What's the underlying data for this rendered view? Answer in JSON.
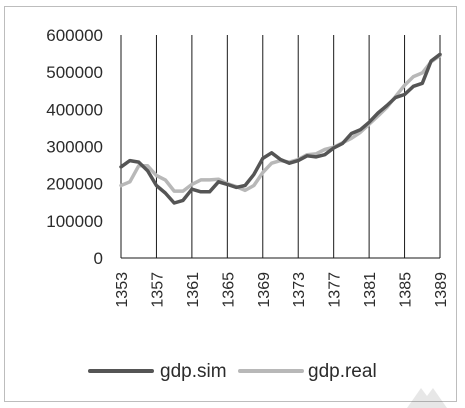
{
  "chart_data": {
    "type": "line",
    "title": "",
    "xlabel": "",
    "ylabel": "",
    "x": [
      1353,
      1354,
      1355,
      1356,
      1357,
      1358,
      1359,
      1360,
      1361,
      1362,
      1363,
      1364,
      1365,
      1366,
      1367,
      1368,
      1369,
      1370,
      1371,
      1372,
      1373,
      1374,
      1375,
      1376,
      1377,
      1378,
      1379,
      1380,
      1381,
      1382,
      1383,
      1384,
      1385,
      1386,
      1387,
      1388,
      1389
    ],
    "x_tick_labels": [
      "1353",
      "1357",
      "1361",
      "1365",
      "1369",
      "1373",
      "1377",
      "1381",
      "1385",
      "1389"
    ],
    "ylim": [
      0,
      600000
    ],
    "y_tick_labels": [
      "0",
      "100000",
      "200000",
      "300000",
      "400000",
      "500000",
      "600000"
    ],
    "grid": "vertical",
    "legend_position": "bottom",
    "series": [
      {
        "name": "gdp.sim",
        "color": "#555555",
        "values": [
          245000,
          262000,
          258000,
          235000,
          195000,
          175000,
          148000,
          155000,
          185000,
          178000,
          178000,
          205000,
          198000,
          190000,
          195000,
          225000,
          268000,
          283000,
          265000,
          255000,
          262000,
          275000,
          272000,
          278000,
          296000,
          308000,
          335000,
          345000,
          365000,
          390000,
          410000,
          432000,
          440000,
          462000,
          470000,
          530000,
          548000
        ]
      },
      {
        "name": "gdp.real",
        "color": "#b8b8b8",
        "values": [
          195000,
          205000,
          248000,
          248000,
          222000,
          210000,
          180000,
          180000,
          198000,
          210000,
          210000,
          212000,
          200000,
          192000,
          182000,
          195000,
          230000,
          255000,
          262000,
          258000,
          265000,
          278000,
          280000,
          292000,
          298000,
          310000,
          322000,
          338000,
          360000,
          382000,
          405000,
          435000,
          465000,
          488000,
          498000,
          528000,
          545000
        ]
      }
    ]
  }
}
